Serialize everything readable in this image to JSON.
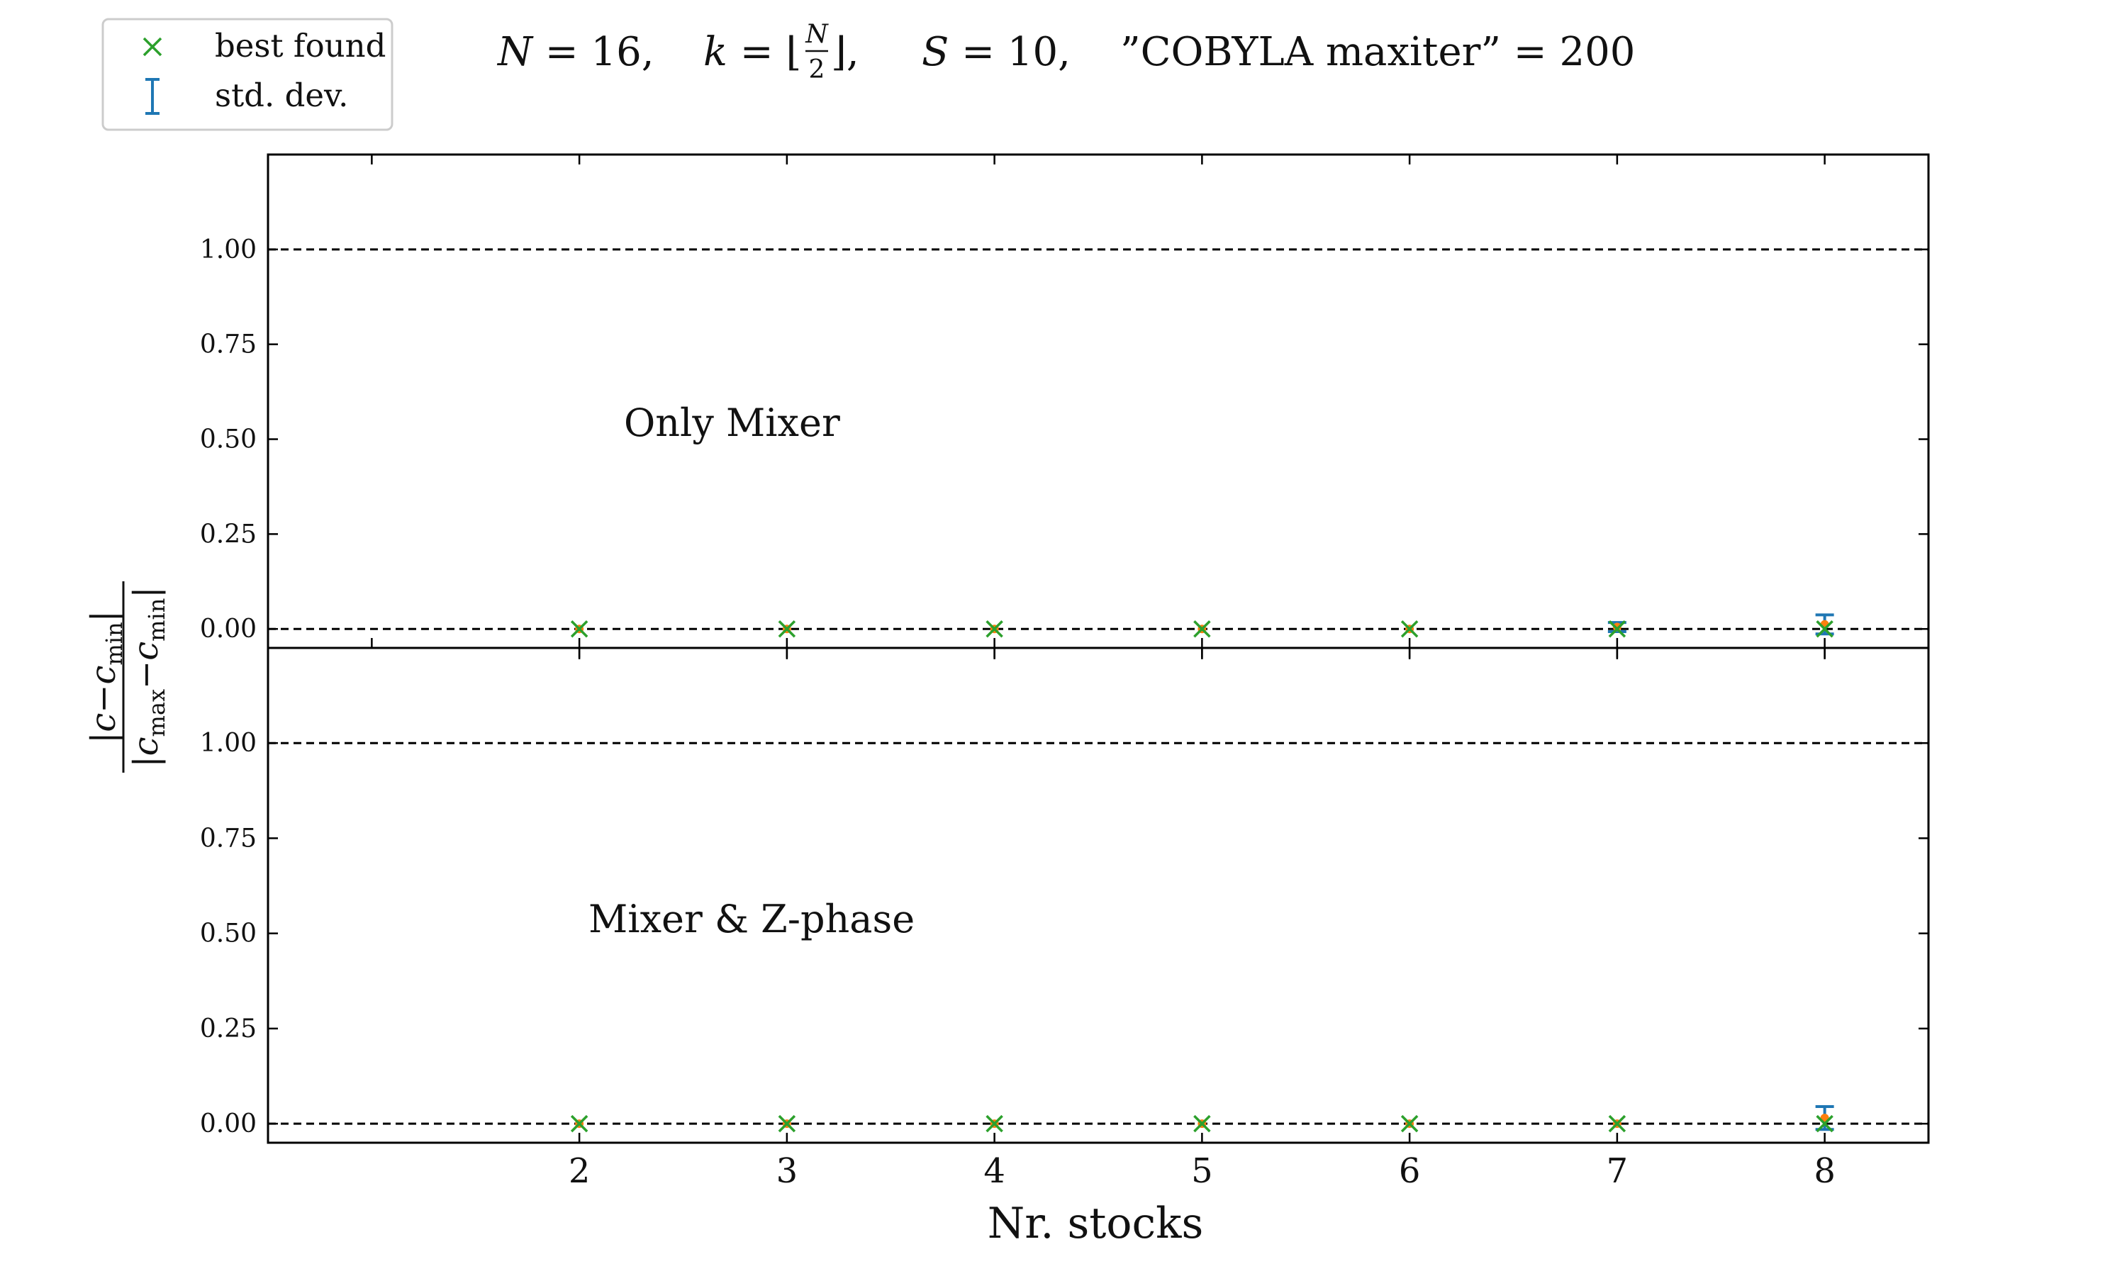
{
  "title": {
    "eq1_var": "N",
    "eq1_rest": " = 16,",
    "eq2_var": "k",
    "eq2_mid": " = ⌊",
    "eq2_num": "N",
    "eq2_den": "2",
    "eq2_end": "⌋,",
    "eq3_var": "S",
    "eq3_rest": " = 10,",
    "eq4": "”COBYLA maxiter” = 200"
  },
  "legend": {
    "best_found": "best found",
    "std_dev": "std. dev."
  },
  "ylabel": {
    "num_open": "|",
    "num_c": "c",
    "num_minus": "−",
    "num_cmin": "c",
    "num_sub": "min",
    "num_close": "|",
    "den_open": "|",
    "den_cmax": "c",
    "den_sub_max": "max",
    "den_minus": "−",
    "den_cmin": "c",
    "den_sub_min": "min",
    "den_close": "|"
  },
  "colors": {
    "best_found": "#2ca02c",
    "std_dev": "#1f77b4",
    "mean": "#ff7f0e",
    "reference_line": "#000000"
  },
  "chart_data": [
    {
      "type": "scatter",
      "panel_label": "Only Mixer",
      "x": [
        2,
        3,
        4,
        5,
        6,
        7,
        8
      ],
      "mean": [
        0.0,
        0.0,
        0.0,
        0.0,
        0.0,
        0.005,
        0.012
      ],
      "std_dev": [
        0.0,
        0.0,
        0.0,
        0.0,
        0.0,
        0.012,
        0.025
      ],
      "best_found": [
        0.0,
        0.0,
        0.0,
        0.0,
        0.0,
        0.0,
        0.0
      ],
      "reference_lines": [
        0.0,
        1.0
      ],
      "xlim": [
        0.5,
        8.5
      ],
      "ylim": [
        -0.05,
        1.25
      ],
      "yticks": [
        0.0,
        0.25,
        0.5,
        0.75,
        1.0
      ],
      "ytick_labels": [
        "0.00",
        "0.25",
        "0.50",
        "0.75",
        "1.00"
      ],
      "xticks": [
        1,
        2,
        3,
        4,
        5,
        6,
        7,
        8
      ]
    },
    {
      "type": "scatter",
      "panel_label": "Mixer & Z-phase",
      "x": [
        2,
        3,
        4,
        5,
        6,
        7,
        8
      ],
      "mean": [
        0.0,
        0.0,
        0.0,
        0.0,
        0.0,
        0.0,
        0.015
      ],
      "std_dev": [
        0.0,
        0.0,
        0.0,
        0.0,
        0.0,
        0.0,
        0.03
      ],
      "best_found": [
        0.0,
        0.0,
        0.0,
        0.0,
        0.0,
        0.0,
        0.0
      ],
      "reference_lines": [
        0.0,
        1.0
      ],
      "xlim": [
        0.5,
        8.5
      ],
      "ylim": [
        -0.05,
        1.25
      ],
      "yticks": [
        0.0,
        0.25,
        0.5,
        0.75,
        1.0
      ],
      "ytick_labels": [
        "0.00",
        "0.25",
        "0.50",
        "0.75",
        "1.00"
      ],
      "xticks": [
        2,
        3,
        4,
        5,
        6,
        7,
        8
      ],
      "xtick_labels": [
        "2",
        "3",
        "4",
        "5",
        "6",
        "7",
        "8"
      ],
      "xlabel": "Nr. stocks"
    }
  ]
}
